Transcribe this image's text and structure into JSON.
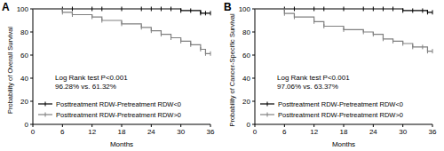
{
  "chart_data": [
    {
      "type": "line",
      "title": "A",
      "ylabel": "Probability of Overall Survival",
      "xlabel": "Months",
      "annotations": [
        "Log Rank test P<0.001",
        "96.28% vs. 61.32%"
      ],
      "x": [
        0,
        6,
        8,
        12,
        14,
        18,
        22,
        24,
        26,
        28,
        30,
        32,
        34,
        35,
        36
      ],
      "xlim": [
        0,
        36
      ],
      "xticks": [
        0,
        6,
        12,
        18,
        24,
        30,
        36
      ],
      "ylim": [
        0,
        100
      ],
      "yticks": [
        0,
        20,
        40,
        60,
        80,
        100
      ],
      "legend": "lower left",
      "line_style": "step",
      "series": [
        {
          "name": "Posttreatment RDW-Pretreatment RDW<0",
          "color": "#000000",
          "marker": "tick",
          "values": [
            100,
            100,
            100,
            100,
            100,
            100,
            100,
            100,
            100,
            100,
            98.5,
            98.5,
            96.28,
            96.28,
            96.28
          ]
        },
        {
          "name": "Posttreatment RDW-Pretreatment RDW>0",
          "color": "#808080",
          "marker": "tick",
          "values": [
            100,
            97,
            95,
            93,
            90,
            87,
            84,
            81,
            78,
            75,
            72,
            69,
            65,
            61.32,
            61.32
          ]
        }
      ]
    },
    {
      "type": "line",
      "title": "B",
      "ylabel": "Probability of Cancer-Specific Survival",
      "xlabel": "Months",
      "annotations": [
        "Log Rank test P<0.001",
        "97.06% vs. 63.37%"
      ],
      "x": [
        0,
        6,
        8,
        12,
        14,
        18,
        22,
        24,
        26,
        28,
        30,
        32,
        34,
        35,
        36
      ],
      "xlim": [
        0,
        36
      ],
      "xticks": [
        0,
        6,
        12,
        18,
        24,
        30,
        36
      ],
      "ylim": [
        0,
        100
      ],
      "yticks": [
        0,
        20,
        40,
        60,
        80,
        100
      ],
      "legend": "lower left",
      "line_style": "step",
      "series": [
        {
          "name": "Posttreatment RDW-Pretreatment RDW<0",
          "color": "#000000",
          "marker": "tick",
          "values": [
            100,
            100,
            100,
            100,
            100,
            100,
            100,
            100,
            100,
            100,
            98.5,
            98.5,
            98.5,
            97.06,
            97.06
          ]
        },
        {
          "name": "Posttreatment RDW-Pretreatment RDW>0",
          "color": "#808080",
          "marker": "tick",
          "values": [
            100,
            96,
            93,
            89,
            85,
            82,
            80,
            78,
            74,
            72,
            70,
            67,
            67,
            63.37,
            63.37
          ]
        }
      ]
    }
  ]
}
